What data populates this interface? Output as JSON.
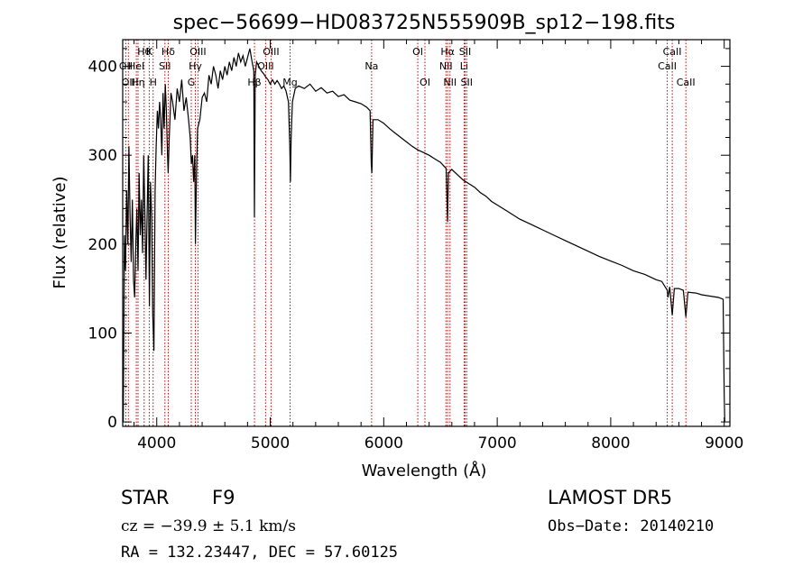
{
  "chart_data": {
    "type": "line",
    "title": "spec−56699−HD083725N555909B_sp12−198.fits",
    "xlabel": "Wavelength (Å)",
    "ylabel": "Flux (relative)",
    "xlim": [
      3700,
      9050
    ],
    "ylim": [
      -5,
      430
    ],
    "xticks": [
      4000,
      5000,
      6000,
      7000,
      8000,
      9000
    ],
    "yticks": [
      0,
      100,
      200,
      300,
      400
    ],
    "grid": false,
    "series": [
      {
        "points": [
          [
            3700,
            30
          ],
          [
            3705,
            0
          ],
          [
            3715,
            210
          ],
          [
            3725,
            170
          ],
          [
            3735,
            260
          ],
          [
            3745,
            200
          ],
          [
            3755,
            310
          ],
          [
            3765,
            230
          ],
          [
            3775,
            180
          ],
          [
            3785,
            250
          ],
          [
            3795,
            160
          ],
          [
            3805,
            140
          ],
          [
            3815,
            200
          ],
          [
            3825,
            240
          ],
          [
            3835,
            170
          ],
          [
            3845,
            280
          ],
          [
            3855,
            210
          ],
          [
            3865,
            250
          ],
          [
            3875,
            190
          ],
          [
            3885,
            300
          ],
          [
            3895,
            240
          ],
          [
            3905,
            160
          ],
          [
            3915,
            230
          ],
          [
            3925,
            300
          ],
          [
            3935,
            130
          ],
          [
            3945,
            270
          ],
          [
            3955,
            230
          ],
          [
            3965,
            120
          ],
          [
            3975,
            80
          ],
          [
            3985,
            260
          ],
          [
            3995,
            310
          ],
          [
            4005,
            350
          ],
          [
            4015,
            330
          ],
          [
            4025,
            360
          ],
          [
            4035,
            340
          ],
          [
            4045,
            300
          ],
          [
            4055,
            370
          ],
          [
            4065,
            330
          ],
          [
            4075,
            380
          ],
          [
            4085,
            350
          ],
          [
            4095,
            300
          ],
          [
            4101,
            280
          ],
          [
            4110,
            320
          ],
          [
            4125,
            370
          ],
          [
            4140,
            360
          ],
          [
            4160,
            340
          ],
          [
            4180,
            375
          ],
          [
            4200,
            360
          ],
          [
            4220,
            385
          ],
          [
            4240,
            350
          ],
          [
            4260,
            365
          ],
          [
            4280,
            340
          ],
          [
            4295,
            320
          ],
          [
            4305,
            290
          ],
          [
            4315,
            300
          ],
          [
            4325,
            270
          ],
          [
            4335,
            300
          ],
          [
            4341,
            200
          ],
          [
            4350,
            280
          ],
          [
            4360,
            330
          ],
          [
            4380,
            340
          ],
          [
            4400,
            365
          ],
          [
            4420,
            370
          ],
          [
            4440,
            360
          ],
          [
            4460,
            390
          ],
          [
            4480,
            380
          ],
          [
            4500,
            400
          ],
          [
            4520,
            390
          ],
          [
            4540,
            375
          ],
          [
            4560,
            395
          ],
          [
            4580,
            385
          ],
          [
            4600,
            400
          ],
          [
            4620,
            390
          ],
          [
            4640,
            405
          ],
          [
            4660,
            395
          ],
          [
            4680,
            410
          ],
          [
            4700,
            400
          ],
          [
            4720,
            415
          ],
          [
            4740,
            405
          ],
          [
            4760,
            412
          ],
          [
            4780,
            400
          ],
          [
            4800,
            410
          ],
          [
            4820,
            420
          ],
          [
            4840,
            405
          ],
          [
            4855,
            395
          ],
          [
            4861,
            230
          ],
          [
            4868,
            390
          ],
          [
            4880,
            405
          ],
          [
            4900,
            400
          ],
          [
            4920,
            395
          ],
          [
            4940,
            392
          ],
          [
            4960,
            388
          ],
          [
            4980,
            385
          ],
          [
            5000,
            380
          ],
          [
            5020,
            385
          ],
          [
            5040,
            380
          ],
          [
            5060,
            384
          ],
          [
            5080,
            380
          ],
          [
            5100,
            375
          ],
          [
            5120,
            378
          ],
          [
            5140,
            372
          ],
          [
            5160,
            360
          ],
          [
            5172,
            310
          ],
          [
            5178,
            270
          ],
          [
            5184,
            320
          ],
          [
            5195,
            360
          ],
          [
            5220,
            375
          ],
          [
            5250,
            378
          ],
          [
            5300,
            375
          ],
          [
            5350,
            380
          ],
          [
            5400,
            372
          ],
          [
            5450,
            376
          ],
          [
            5500,
            370
          ],
          [
            5550,
            372
          ],
          [
            5600,
            366
          ],
          [
            5650,
            368
          ],
          [
            5700,
            362
          ],
          [
            5750,
            360
          ],
          [
            5800,
            358
          ],
          [
            5850,
            354
          ],
          [
            5880,
            350
          ],
          [
            5890,
            290
          ],
          [
            5896,
            280
          ],
          [
            5905,
            340
          ],
          [
            5950,
            340
          ],
          [
            6000,
            336
          ],
          [
            6050,
            330
          ],
          [
            6100,
            325
          ],
          [
            6150,
            320
          ],
          [
            6200,
            315
          ],
          [
            6250,
            310
          ],
          [
            6300,
            306
          ],
          [
            6350,
            303
          ],
          [
            6400,
            300
          ],
          [
            6450,
            296
          ],
          [
            6500,
            292
          ],
          [
            6550,
            285
          ],
          [
            6563,
            225
          ],
          [
            6570,
            280
          ],
          [
            6600,
            284
          ],
          [
            6650,
            278
          ],
          [
            6700,
            272
          ],
          [
            6750,
            268
          ],
          [
            6800,
            264
          ],
          [
            6850,
            258
          ],
          [
            6900,
            254
          ],
          [
            6950,
            248
          ],
          [
            7000,
            244
          ],
          [
            7100,
            236
          ],
          [
            7200,
            228
          ],
          [
            7300,
            222
          ],
          [
            7400,
            216
          ],
          [
            7500,
            210
          ],
          [
            7600,
            204
          ],
          [
            7700,
            198
          ],
          [
            7800,
            192
          ],
          [
            7900,
            186
          ],
          [
            8000,
            181
          ],
          [
            8100,
            176
          ],
          [
            8200,
            170
          ],
          [
            8300,
            166
          ],
          [
            8400,
            160
          ],
          [
            8450,
            158
          ],
          [
            8498,
            148
          ],
          [
            8505,
            140
          ],
          [
            8520,
            152
          ],
          [
            8542,
            120
          ],
          [
            8560,
            150
          ],
          [
            8600,
            150
          ],
          [
            8640,
            148
          ],
          [
            8662,
            118
          ],
          [
            8680,
            146
          ],
          [
            8750,
            145
          ],
          [
            8800,
            143
          ],
          [
            8850,
            142
          ],
          [
            8900,
            141
          ],
          [
            8950,
            140
          ],
          [
            8990,
            138
          ],
          [
            9000,
            30
          ],
          [
            9005,
            0
          ]
        ]
      }
    ],
    "line_markers": [
      {
        "wl": 3727,
        "labels": [
          "OII"
        ],
        "row": 1
      },
      {
        "wl": 3750,
        "labels": [
          "OII"
        ],
        "row": 2
      },
      {
        "wl": 3820,
        "labels": [
          "HeI"
        ],
        "row": 1
      },
      {
        "wl": 3835,
        "labels": [
          "Hη"
        ],
        "row": 2
      },
      {
        "wl": 3889,
        "labels": [
          "Hθ"
        ],
        "row": 0
      },
      {
        "wl": 3934,
        "labels": [
          "K"
        ],
        "row": 0
      },
      {
        "wl": 3968,
        "labels": [
          "H"
        ],
        "row": 2
      },
      {
        "wl": 4072,
        "labels": [
          "SII"
        ],
        "row": 1
      },
      {
        "wl": 4101,
        "labels": [
          "Hδ"
        ],
        "row": 0
      },
      {
        "wl": 4304,
        "labels": [
          "G"
        ],
        "row": 2
      },
      {
        "wl": 4340,
        "labels": [
          "Hγ"
        ],
        "row": 1
      },
      {
        "wl": 4363,
        "labels": [
          "OIII"
        ],
        "row": 0
      },
      {
        "wl": 4861,
        "labels": [
          "Hβ"
        ],
        "row": 2
      },
      {
        "wl": 4959,
        "labels": [
          "OIII"
        ],
        "row": 1
      },
      {
        "wl": 5007,
        "labels": [
          "OIII"
        ],
        "row": 0
      },
      {
        "wl": 5175,
        "labels": [
          "Mg"
        ],
        "row": 2
      },
      {
        "wl": 5893,
        "labels": [
          "Na"
        ],
        "row": 1
      },
      {
        "wl": 6300,
        "labels": [
          "OI"
        ],
        "row": 0
      },
      {
        "wl": 6363,
        "labels": [
          "OI"
        ],
        "row": 2
      },
      {
        "wl": 6548,
        "labels": [
          "NII"
        ],
        "row": 1
      },
      {
        "wl": 6563,
        "labels": [
          "Hα"
        ],
        "row": 0
      },
      {
        "wl": 6584,
        "labels": [
          "NII"
        ],
        "row": 2
      },
      {
        "wl": 6708,
        "labels": [
          "Li"
        ],
        "row": 1
      },
      {
        "wl": 6717,
        "labels": [
          "SII"
        ],
        "row": 0
      },
      {
        "wl": 6731,
        "labels": [
          "SII"
        ],
        "row": 2
      },
      {
        "wl": 8498,
        "labels": [
          "CaII"
        ],
        "row": 1
      },
      {
        "wl": 8542,
        "labels": [
          "CaII"
        ],
        "row": 0
      },
      {
        "wl": 8662,
        "labels": [
          "CaII"
        ],
        "row": 2
      }
    ],
    "colors": {
      "line": "#000000",
      "marker": "#cc0000"
    }
  },
  "info": {
    "class_label": "STAR",
    "subclass": "F9",
    "survey": "LAMOST  DR5",
    "cz_text": "cz = −39.9 ± 5.1 km/s",
    "obs_date": "Obs−Date: 20140210",
    "coords": "RA = 132.23447, DEC =  57.60125"
  }
}
